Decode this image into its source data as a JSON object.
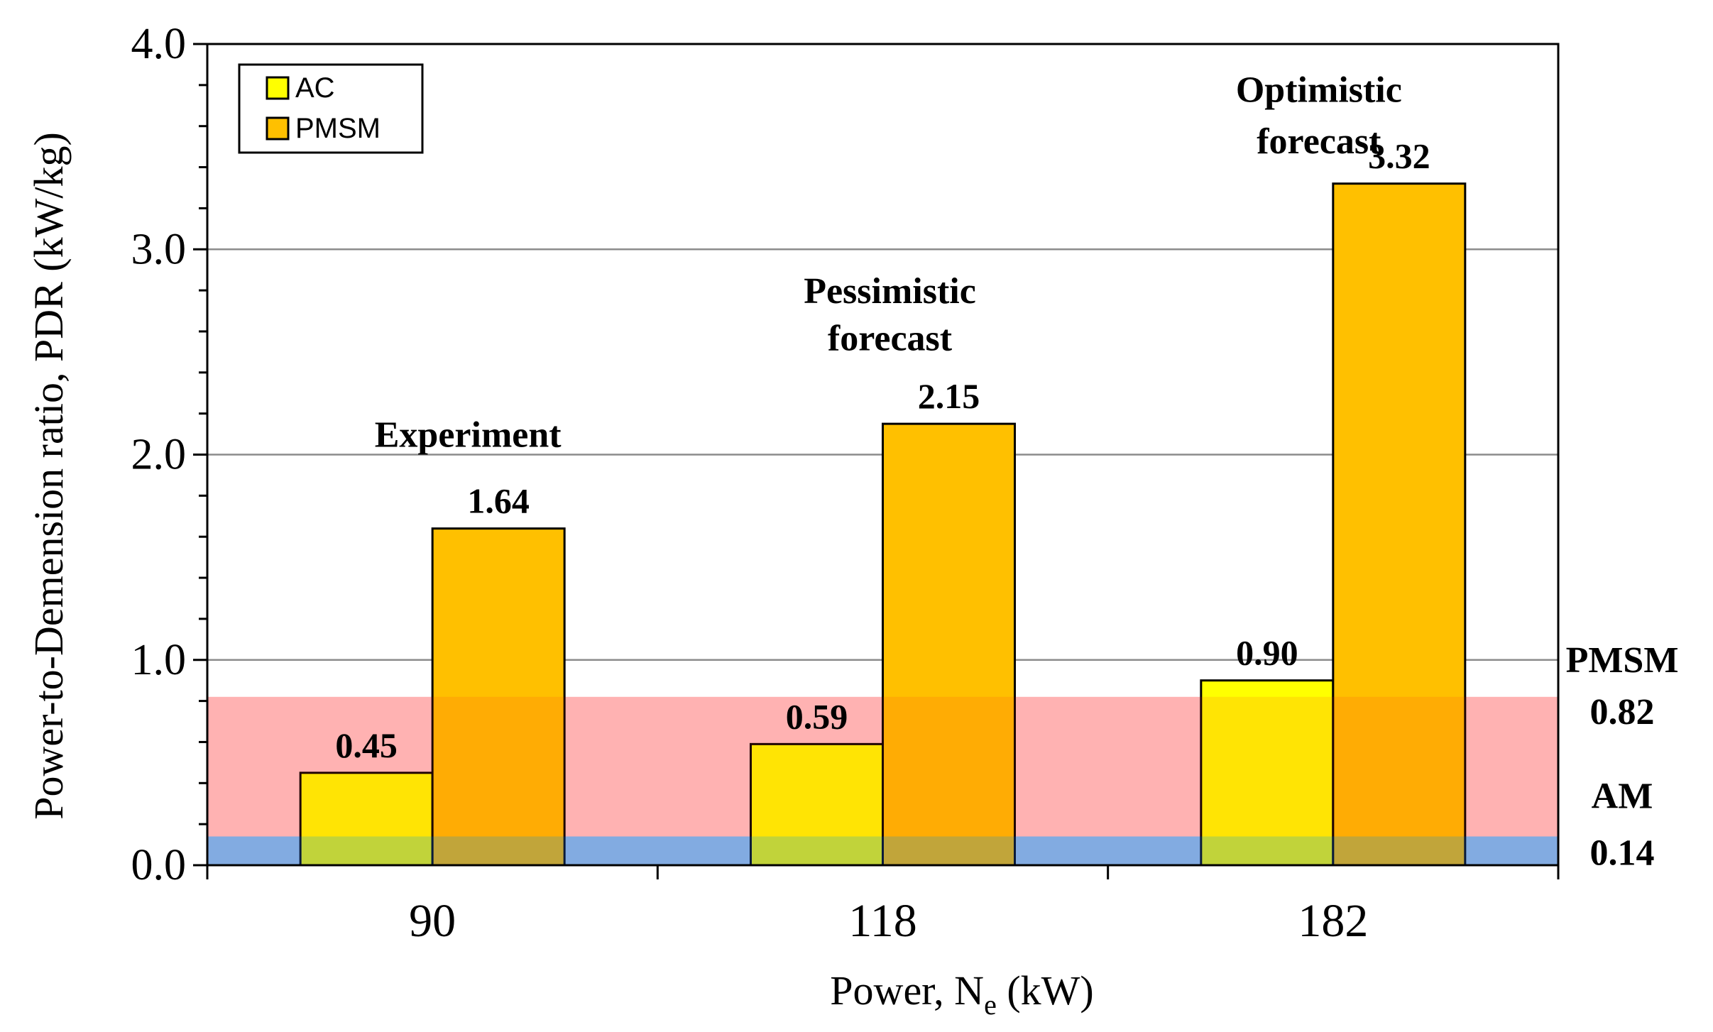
{
  "chart_data": {
    "type": "bar",
    "categories": [
      "90",
      "118",
      "182"
    ],
    "series": [
      {
        "name": "AC",
        "values": [
          0.45,
          0.59,
          0.9
        ],
        "labels": [
          "0.45",
          "0.59",
          "0.90"
        ],
        "color": "#FFFF00"
      },
      {
        "name": "PMSM",
        "values": [
          1.64,
          2.15,
          3.32
        ],
        "labels": [
          "1.64",
          "2.15",
          "3.32"
        ],
        "color": "#FFC000"
      }
    ],
    "xlabel_main": "Power, N",
    "xlabel_sub": "e",
    "xlabel_unit": " (kW)",
    "ylabel": "Power-to-Demension ratio, PDR (kW/kg)",
    "ylim": [
      0,
      4
    ],
    "yticks": [
      "0.0",
      "1.0",
      "2.0",
      "3.0",
      "4.0"
    ],
    "ytick_values": [
      0,
      1,
      2,
      3,
      4
    ],
    "grid": true,
    "legend_position": "top-left",
    "bands": [
      {
        "name": "PMSM",
        "value": 0.82,
        "label_name": "PMSM",
        "label_value": "0.82",
        "color": "#FF0000"
      },
      {
        "name": "AM",
        "value": 0.14,
        "label_name": "AM",
        "label_value": "0.14",
        "color": "#0070C0"
      }
    ],
    "group_annotations": [
      {
        "lines": [
          "Experiment"
        ]
      },
      {
        "lines": [
          "Pessimistic",
          "forecast"
        ]
      },
      {
        "lines": [
          "Optimistic",
          "forecast"
        ]
      }
    ]
  }
}
